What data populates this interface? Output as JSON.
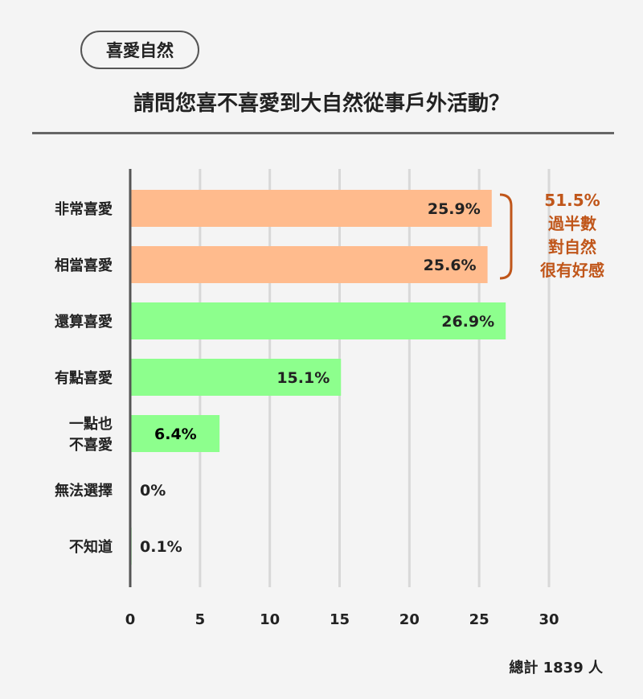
{
  "header": {
    "tag": "喜愛自然",
    "title": "請問您喜不喜愛到大自然從事戶外活動？"
  },
  "footer": {
    "total": "總計 1839 人"
  },
  "colors": {
    "orange": "#ffbb8d",
    "green": "#8dff8d",
    "accent": "#c0561a",
    "axis": "#555555",
    "grid": "#d8d8d8"
  },
  "chart_data": {
    "type": "bar",
    "orientation": "horizontal",
    "categories": [
      [
        "非常喜愛"
      ],
      [
        "相當喜愛"
      ],
      [
        "還算喜愛"
      ],
      [
        "有點喜愛"
      ],
      [
        "一點也",
        "不喜愛"
      ],
      [
        "無法選擇"
      ],
      [
        "不知道"
      ]
    ],
    "values": [
      25.9,
      25.6,
      26.9,
      15.1,
      6.4,
      0,
      0.1
    ],
    "value_labels": [
      "25.9%",
      "25.6%",
      "26.9%",
      "15.1%",
      "6.4%",
      "0%",
      "0.1%"
    ],
    "bar_colors": [
      "#ffbb8d",
      "#ffbb8d",
      "#8dff8d",
      "#8dff8d",
      "#8dff8d",
      "#8dff8d",
      "#8dff8d"
    ],
    "xlim": [
      0,
      30
    ],
    "xticks": [
      0,
      5,
      10,
      15,
      20,
      25,
      30
    ],
    "grid": true,
    "annotation": {
      "lines": [
        "51.5%",
        "過半數",
        "對自然",
        "很有好感"
      ],
      "bracket_categories": [
        0,
        1
      ]
    }
  }
}
